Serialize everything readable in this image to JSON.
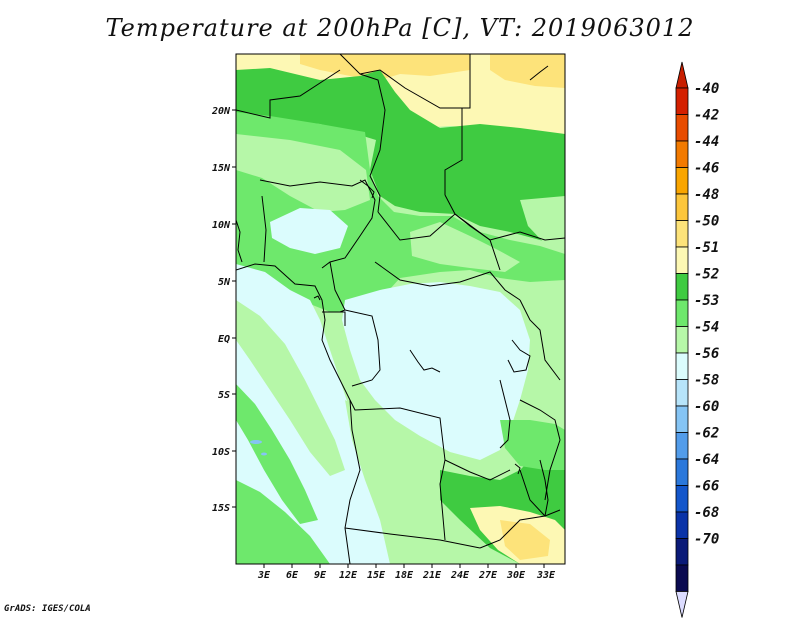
{
  "title": "Temperature at 200hPa [C], VT: 2019063012",
  "credit": "GrADS: IGES/COLA",
  "map": {
    "x_ticks": [
      "3E",
      "6E",
      "9E",
      "12E",
      "15E",
      "18E",
      "21E",
      "24E",
      "27E",
      "30E",
      "33E"
    ],
    "y_ticks": [
      "20N",
      "15N",
      "10N",
      "5N",
      "EQ",
      "5S",
      "10S",
      "15S"
    ]
  },
  "colorbar": {
    "labels": [
      "-40",
      "-42",
      "-44",
      "-46",
      "-48",
      "-50",
      "-51",
      "-52",
      "-53",
      "-54",
      "-56",
      "-58",
      "-60",
      "-62",
      "-64",
      "-66",
      "-68",
      "-70"
    ],
    "colors": [
      "#d42000",
      "#e84c00",
      "#f27a00",
      "#f9a500",
      "#fcc63c",
      "#fde37a",
      "#fdf8b4",
      "#3fcb41",
      "#6ee86c",
      "#b6f7a8",
      "#dbfcfd",
      "#b7e4fa",
      "#85c4f4",
      "#529cea",
      "#2b78db",
      "#1356cb",
      "#0a33a8",
      "#0a1a78",
      "#0a0a50"
    ],
    "top_arrow_color": "#c81e00",
    "bottom_arrow_color": "#dcdcff"
  },
  "field_colors": {
    "t_m50": "#fde37a",
    "t_m51": "#fdf8b4",
    "t_m52": "#3fcb41",
    "t_m53": "#6ee86c",
    "t_m54": "#b6f7a8",
    "t_m56": "#dbfcfd",
    "t_m58": "#85c4f4"
  }
}
